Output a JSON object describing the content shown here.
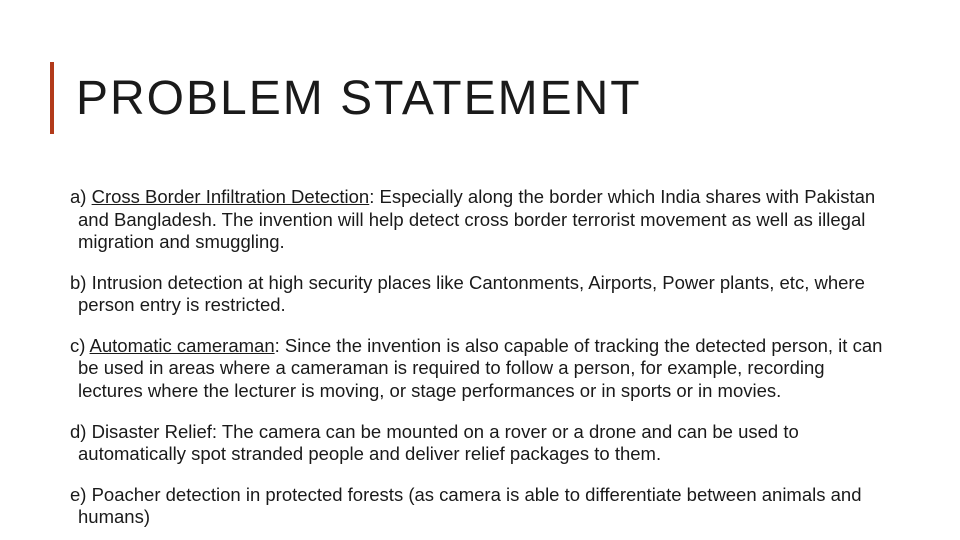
{
  "accent_color": "#b23a1a",
  "text_color": "#1a1a1a",
  "background_color": "#ffffff",
  "title": "PROBLEM STATEMENT",
  "title_fontsize": 48,
  "body_fontsize": 18.5,
  "paragraphs": {
    "a": {
      "lead": "a) ",
      "underline": "Cross Border Infiltration Detection",
      "rest": ": Especially along the border which India shares with Pakistan and Bangladesh. The invention will help detect cross border terrorist movement as well as illegal migration and smuggling."
    },
    "b": {
      "full": "b) Intrusion detection at high security places like Cantonments, Airports, Power plants, etc, where person entry is restricted."
    },
    "c": {
      "lead": "c) ",
      "underline": "Automatic cameraman",
      "rest": ": Since the invention is also capable of tracking the detected person, it can be used in areas where a cameraman is required to follow a person, for example, recording lectures where the lecturer is moving, or stage performances or in sports or in movies."
    },
    "d": {
      "full": "d) Disaster Relief: The camera can be mounted on a rover or a drone and can be used to automatically spot stranded people and deliver relief packages to them."
    },
    "e": {
      "full": "e) Poacher detection in protected forests (as camera is able to differentiate between animals and humans)"
    }
  }
}
